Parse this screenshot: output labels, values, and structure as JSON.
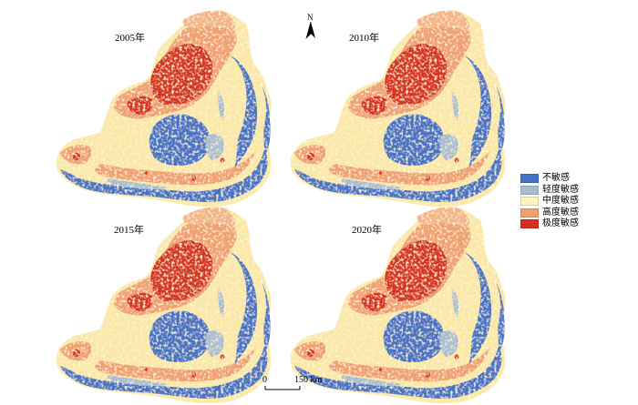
{
  "panels": [
    {
      "year": "2005年",
      "id": "2005"
    },
    {
      "year": "2010年",
      "id": "2010"
    },
    {
      "year": "2015年",
      "id": "2015"
    },
    {
      "year": "2020年",
      "id": "2020"
    }
  ],
  "legend": {
    "items": [
      {
        "label": "不敏感",
        "color": "#4472c4"
      },
      {
        "label": "轻度敏感",
        "color": "#a9bcd0"
      },
      {
        "label": "中度敏感",
        "color": "#fdf5bd"
      },
      {
        "label": "高度敏感",
        "color": "#f0a070"
      },
      {
        "label": "极度敏感",
        "color": "#d7301f"
      }
    ]
  },
  "north": {
    "label": "N"
  },
  "scale": {
    "start": "0",
    "end": "150 km"
  }
}
